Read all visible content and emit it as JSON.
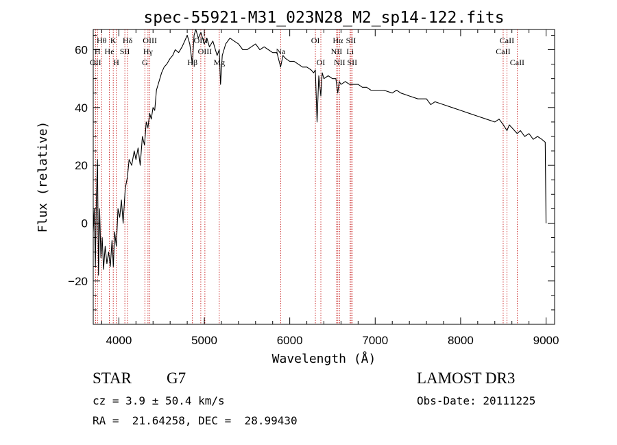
{
  "chart_data": {
    "type": "line",
    "title": "spec-55921-M31_023N28_M2_sp14-122.fits",
    "xlabel": "Wavelength (Å)",
    "ylabel": "Flux (relative)",
    "xlim": [
      3700,
      9100
    ],
    "ylim": [
      -35,
      67
    ],
    "xticks": [
      4000,
      5000,
      6000,
      7000,
      8000,
      9000
    ],
    "yticks": [
      -20,
      0,
      20,
      40,
      60
    ],
    "grid": false,
    "line_color": "#000000",
    "marker_color": "#c00000",
    "series": [
      {
        "points": [
          [
            3700,
            -3
          ],
          [
            3712,
            5
          ],
          [
            3725,
            -15
          ],
          [
            3738,
            10
          ],
          [
            3750,
            22
          ],
          [
            3762,
            -18
          ],
          [
            3775,
            5
          ],
          [
            3790,
            -12
          ],
          [
            3805,
            -5
          ],
          [
            3820,
            -16
          ],
          [
            3840,
            -8
          ],
          [
            3860,
            -14
          ],
          [
            3880,
            -10
          ],
          [
            3900,
            -15
          ],
          [
            3920,
            -6
          ],
          [
            3935,
            -15
          ],
          [
            3950,
            -3
          ],
          [
            3970,
            -8
          ],
          [
            3990,
            5
          ],
          [
            4010,
            2
          ],
          [
            4030,
            8
          ],
          [
            4050,
            0
          ],
          [
            4075,
            12
          ],
          [
            4100,
            16
          ],
          [
            4120,
            22
          ],
          [
            4150,
            20
          ],
          [
            4180,
            25
          ],
          [
            4200,
            22
          ],
          [
            4225,
            26
          ],
          [
            4250,
            20
          ],
          [
            4275,
            30
          ],
          [
            4300,
            27
          ],
          [
            4320,
            35
          ],
          [
            4340,
            33
          ],
          [
            4360,
            38
          ],
          [
            4380,
            36
          ],
          [
            4400,
            40
          ],
          [
            4420,
            39
          ],
          [
            4440,
            46
          ],
          [
            4460,
            48
          ],
          [
            4480,
            50
          ],
          [
            4500,
            52
          ],
          [
            4530,
            54
          ],
          [
            4560,
            55
          ],
          [
            4600,
            57
          ],
          [
            4630,
            58
          ],
          [
            4660,
            60
          ],
          [
            4700,
            59
          ],
          [
            4740,
            61
          ],
          [
            4770,
            63
          ],
          [
            4800,
            65
          ],
          [
            4830,
            62
          ],
          [
            4860,
            55
          ],
          [
            4880,
            65
          ],
          [
            4900,
            67
          ],
          [
            4930,
            64
          ],
          [
            4960,
            66
          ],
          [
            5000,
            62
          ],
          [
            5030,
            64
          ],
          [
            5060,
            61
          ],
          [
            5100,
            63
          ],
          [
            5150,
            58
          ],
          [
            5175,
            60
          ],
          [
            5190,
            48
          ],
          [
            5210,
            58
          ],
          [
            5250,
            62
          ],
          [
            5300,
            64
          ],
          [
            5350,
            63
          ],
          [
            5400,
            62
          ],
          [
            5450,
            60
          ],
          [
            5500,
            60
          ],
          [
            5550,
            61
          ],
          [
            5600,
            62
          ],
          [
            5650,
            60
          ],
          [
            5700,
            61
          ],
          [
            5750,
            60
          ],
          [
            5800,
            59
          ],
          [
            5850,
            59
          ],
          [
            5893,
            54
          ],
          [
            5920,
            58
          ],
          [
            5950,
            57
          ],
          [
            6000,
            56
          ],
          [
            6050,
            56
          ],
          [
            6100,
            55
          ],
          [
            6150,
            54
          ],
          [
            6200,
            54
          ],
          [
            6250,
            53
          ],
          [
            6280,
            52
          ],
          [
            6300,
            53
          ],
          [
            6320,
            35
          ],
          [
            6340,
            51
          ],
          [
            6364,
            44
          ],
          [
            6380,
            52
          ],
          [
            6400,
            50
          ],
          [
            6450,
            51
          ],
          [
            6500,
            50
          ],
          [
            6540,
            50
          ],
          [
            6562,
            45
          ],
          [
            6580,
            49
          ],
          [
            6600,
            48
          ],
          [
            6650,
            49
          ],
          [
            6700,
            48
          ],
          [
            6750,
            48
          ],
          [
            6800,
            48
          ],
          [
            6850,
            47
          ],
          [
            6900,
            47
          ],
          [
            6950,
            46
          ],
          [
            7000,
            46
          ],
          [
            7100,
            46
          ],
          [
            7200,
            45
          ],
          [
            7250,
            46
          ],
          [
            7300,
            45
          ],
          [
            7400,
            44
          ],
          [
            7500,
            43
          ],
          [
            7600,
            43
          ],
          [
            7650,
            41
          ],
          [
            7700,
            42
          ],
          [
            7800,
            41
          ],
          [
            7900,
            40
          ],
          [
            8000,
            39
          ],
          [
            8100,
            38
          ],
          [
            8200,
            37
          ],
          [
            8300,
            36
          ],
          [
            8400,
            35
          ],
          [
            8450,
            36
          ],
          [
            8500,
            34
          ],
          [
            8542,
            32
          ],
          [
            8570,
            34
          ],
          [
            8600,
            33
          ],
          [
            8662,
            31
          ],
          [
            8700,
            32
          ],
          [
            8750,
            30
          ],
          [
            8800,
            31
          ],
          [
            8850,
            29
          ],
          [
            8900,
            30
          ],
          [
            8950,
            29
          ],
          [
            8990,
            28
          ],
          [
            9000,
            0
          ]
        ]
      }
    ],
    "lines": [
      {
        "name": "Hθ",
        "x": 3798,
        "row": 1
      },
      {
        "name": "OII",
        "x": 3727,
        "row": 3
      },
      {
        "name": "H",
        "x": 3750,
        "row": 2
      },
      {
        "name": "He",
        "x": 3889,
        "row": 2
      },
      {
        "name": "K",
        "x": 3934,
        "row": 1
      },
      {
        "name": "H",
        "x": 3969,
        "row": 3
      },
      {
        "name": "SII",
        "x": 4070,
        "row": 2
      },
      {
        "name": "Hδ",
        "x": 4102,
        "row": 1
      },
      {
        "name": "OIII",
        "x": 4363,
        "row": 1
      },
      {
        "name": "Hγ",
        "x": 4341,
        "row": 2
      },
      {
        "name": "G",
        "x": 4304,
        "row": 3
      },
      {
        "name": "Hβ",
        "x": 4861,
        "row": 3
      },
      {
        "name": "OIII",
        "x": 4959,
        "row": 1
      },
      {
        "name": "OIII",
        "x": 5007,
        "row": 2
      },
      {
        "name": "Mg",
        "x": 5175,
        "row": 3
      },
      {
        "name": "Na",
        "x": 5893,
        "row": 2
      },
      {
        "name": "OI",
        "x": 6300,
        "row": 1
      },
      {
        "name": "OI",
        "x": 6364,
        "row": 3
      },
      {
        "name": "NII",
        "x": 6548,
        "row": 2
      },
      {
        "name": "Hα",
        "x": 6563,
        "row": 1
      },
      {
        "name": "NII",
        "x": 6583,
        "row": 3
      },
      {
        "name": "SII",
        "x": 6717,
        "row": 1
      },
      {
        "name": "Li",
        "x": 6707,
        "row": 2
      },
      {
        "name": "SII",
        "x": 6731,
        "row": 3
      },
      {
        "name": "CaII",
        "x": 8498,
        "row": 2
      },
      {
        "name": "CaII",
        "x": 8542,
        "row": 1
      },
      {
        "name": "CaII",
        "x": 8662,
        "row": 3
      }
    ]
  },
  "info": {
    "class": "STAR",
    "subclass": "G7",
    "survey": "LAMOST DR3",
    "cz": "cz = 3.9 ± 50.4 km/s",
    "obs_date": "Obs-Date: 20111225",
    "radec": "RA =  21.64258, DEC =  28.99430"
  }
}
